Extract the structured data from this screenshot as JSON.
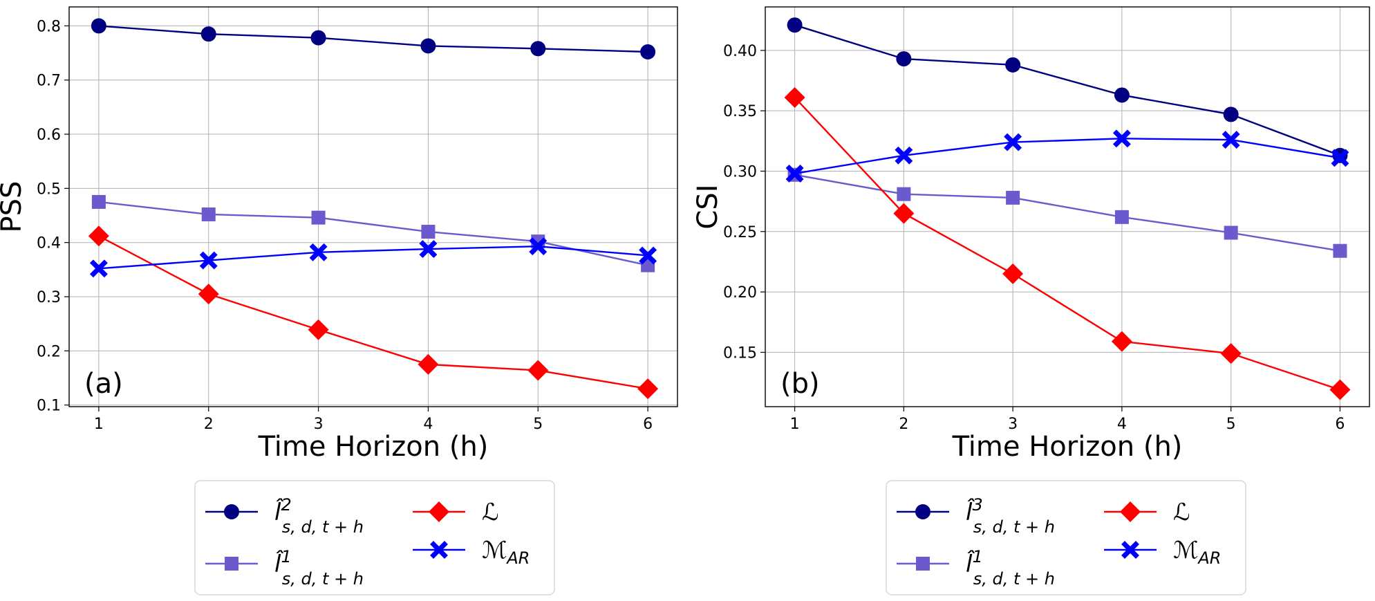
{
  "chart_data": [
    {
      "type": "line",
      "panel_label": "(a)",
      "xlabel": "Time Horizon (h)",
      "ylabel": "PSS",
      "x": [
        1,
        2,
        3,
        4,
        5,
        6
      ],
      "xlim": [
        0.73,
        6.27
      ],
      "ylim": [
        0.097,
        0.835
      ],
      "xticks": [
        "1",
        "2",
        "3",
        "4",
        "5",
        "6"
      ],
      "yticks": [
        0.1,
        0.2,
        0.3,
        0.4,
        0.5,
        0.6,
        0.7,
        0.8
      ],
      "ytick_labels": [
        "0.1",
        "0.2",
        "0.3",
        "0.4",
        "0.5",
        "0.6",
        "0.7",
        "0.8"
      ],
      "grid": true,
      "legend_location": "below",
      "series": [
        {
          "key": "l2",
          "label_base": "l̂",
          "label_sup": "2",
          "label_sub": "s, d, t + h",
          "color": "#000080",
          "marker": "circle",
          "values": [
            0.8,
            0.785,
            0.778,
            0.763,
            0.758,
            0.752
          ]
        },
        {
          "key": "l1",
          "label_base": "l̂",
          "label_sup": "1",
          "label_sub": "s, d, t + h",
          "color": "#6A5ACD",
          "marker": "square",
          "values": [
            0.475,
            0.452,
            0.446,
            0.42,
            0.402,
            0.358
          ]
        },
        {
          "key": "L",
          "label_base": "ℒ",
          "label_sup": "",
          "label_sub": "",
          "color": "#FF0000",
          "marker": "diamond",
          "values": [
            0.412,
            0.305,
            0.239,
            0.175,
            0.164,
            0.13
          ]
        },
        {
          "key": "MAR",
          "label_base": "ℳ",
          "label_sup": "",
          "label_sub": "AR",
          "color": "#0000FF",
          "marker": "x",
          "values": [
            0.352,
            0.367,
            0.382,
            0.388,
            0.393,
            0.376
          ]
        }
      ]
    },
    {
      "type": "line",
      "panel_label": "(b)",
      "xlabel": "Time Horizon (h)",
      "ylabel": "CSI",
      "x": [
        1,
        2,
        3,
        4,
        5,
        6
      ],
      "xlim": [
        0.73,
        6.27
      ],
      "ylim": [
        0.105,
        0.436
      ],
      "xticks": [
        "1",
        "2",
        "3",
        "4",
        "5",
        "6"
      ],
      "yticks": [
        0.15,
        0.2,
        0.25,
        0.3,
        0.35,
        0.4
      ],
      "ytick_labels": [
        "0.15",
        "0.20",
        "0.25",
        "0.30",
        "0.35",
        "0.40"
      ],
      "grid": true,
      "legend_location": "below",
      "series": [
        {
          "key": "l3",
          "label_base": "l̂",
          "label_sup": "3",
          "label_sub": "s, d, t + h",
          "color": "#000080",
          "marker": "circle",
          "values": [
            0.421,
            0.393,
            0.388,
            0.363,
            0.347,
            0.313
          ]
        },
        {
          "key": "l1",
          "label_base": "l̂",
          "label_sup": "1",
          "label_sub": "s, d, t + h",
          "color": "#6A5ACD",
          "marker": "square",
          "values": [
            0.297,
            0.281,
            0.278,
            0.262,
            0.249,
            0.234
          ]
        },
        {
          "key": "L",
          "label_base": "ℒ",
          "label_sup": "",
          "label_sub": "",
          "color": "#FF0000",
          "marker": "diamond",
          "values": [
            0.361,
            0.265,
            0.215,
            0.159,
            0.149,
            0.119
          ]
        },
        {
          "key": "MAR",
          "label_base": "ℳ",
          "label_sup": "",
          "label_sub": "AR",
          "color": "#0000FF",
          "marker": "x",
          "values": [
            0.298,
            0.313,
            0.324,
            0.327,
            0.326,
            0.311
          ]
        }
      ]
    }
  ]
}
